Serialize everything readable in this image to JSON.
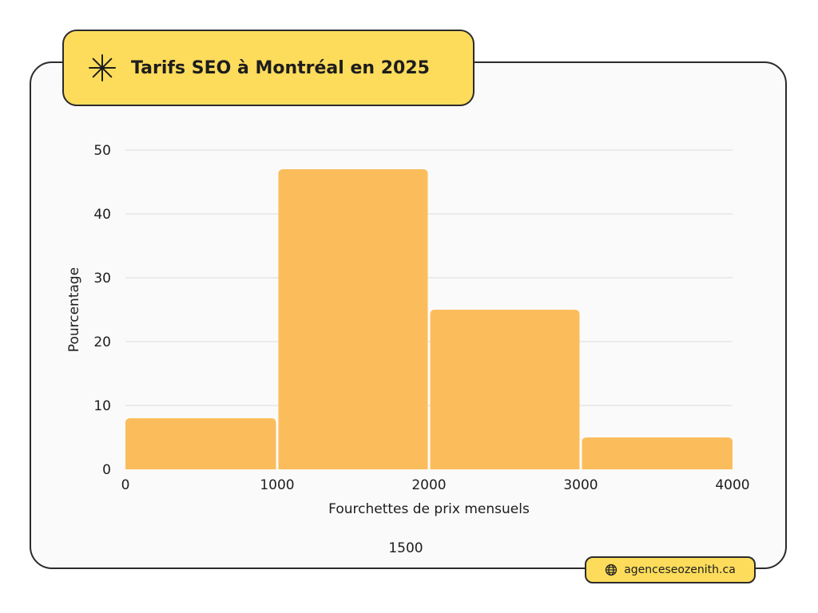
{
  "header": {
    "title": "Tarifs SEO à Montréal en 2025",
    "icon": "asterisk-star-icon"
  },
  "colors": {
    "bar": "#fbbd5c",
    "accent": "#fddc5c",
    "border": "#2b2b2b",
    "grid": "#dcdcdc",
    "text": "#1d1d1d"
  },
  "chart_data": {
    "type": "bar",
    "bins": [
      {
        "x0": 0,
        "x1": 1000,
        "value": 8
      },
      {
        "x0": 1000,
        "x1": 2000,
        "value": 47
      },
      {
        "x0": 2000,
        "x1": 3000,
        "value": 25
      },
      {
        "x0": 3000,
        "x1": 4000,
        "value": 5
      }
    ],
    "xlabel": "Fourchettes de prix mensuels",
    "ylabel": "Pourcentage",
    "xlim": [
      0,
      4000
    ],
    "ylim": [
      0,
      50
    ],
    "xticks": [
      "0",
      "1000",
      "2000",
      "3000",
      "4000"
    ],
    "yticks": [
      "0",
      "10",
      "20",
      "30",
      "40",
      "50"
    ],
    "annotation": "1500",
    "grid": true
  },
  "footer": {
    "source": "agenceseozenith.ca",
    "icon": "globe-icon"
  }
}
